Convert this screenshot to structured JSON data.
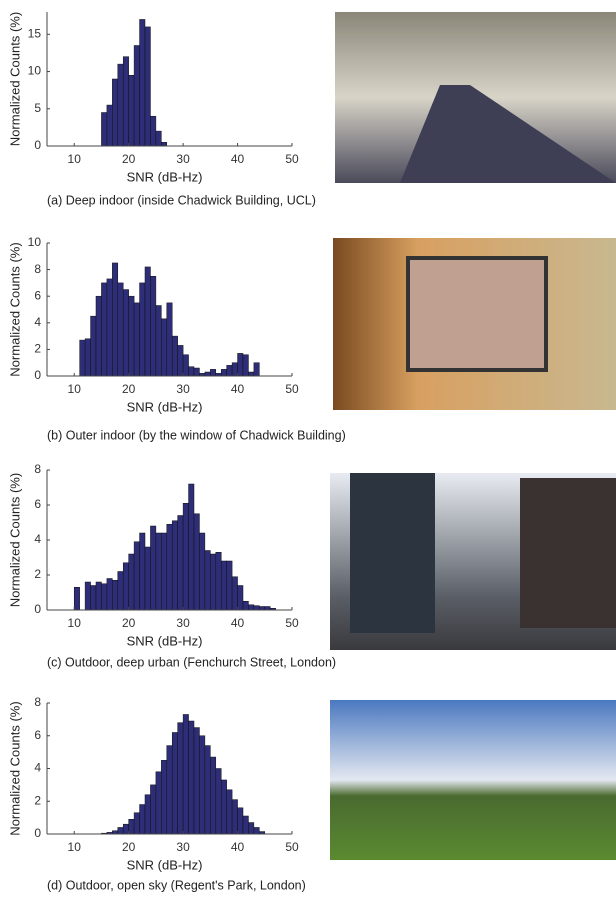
{
  "chart_data": [
    {
      "type": "histogram",
      "caption": "(a) Deep indoor (inside Chadwick Building, UCL)",
      "x_label": "SNR (dB-Hz)",
      "y_label": "Normalized Counts (%)",
      "color": "#2e2e78",
      "bins": [
        15,
        16,
        17,
        18,
        19,
        20,
        21,
        22,
        23,
        24,
        25,
        26,
        27
      ],
      "values": [
        4.5,
        5.5,
        9,
        11,
        12,
        9.5,
        13.5,
        17,
        16,
        4,
        2,
        0.5
      ],
      "xlim": [
        5,
        50
      ],
      "xticks": [
        10,
        20,
        30,
        40,
        50
      ],
      "ylim": [
        0,
        18
      ],
      "yticks": [
        0,
        5,
        10,
        15
      ]
    },
    {
      "type": "histogram",
      "caption": "(b) Outer indoor (by the window of Chadwick Building)",
      "x_label": "SNR (dB-Hz)",
      "y_label": "Normalized Counts (%)",
      "color": "#2e2e78",
      "bins": [
        11,
        12,
        13,
        14,
        15,
        16,
        17,
        18,
        19,
        20,
        21,
        22,
        23,
        24,
        25,
        26,
        27,
        28,
        29,
        30,
        31,
        32,
        33,
        34,
        35,
        36,
        37,
        38,
        39,
        40,
        41,
        42,
        43,
        44
      ],
      "values": [
        2.7,
        2.8,
        4.5,
        6,
        7,
        7.3,
        8.5,
        7,
        6.5,
        6,
        5.5,
        7,
        8.2,
        7.5,
        5.3,
        4.3,
        5.5,
        3,
        2.3,
        1.6,
        0.7,
        0.6,
        0.2,
        0.3,
        0.5,
        0.2,
        0.5,
        0.8,
        1,
        1.7,
        1.6,
        0.3,
        1
      ],
      "xlim": [
        5,
        50
      ],
      "xticks": [
        10,
        20,
        30,
        40,
        50
      ],
      "ylim": [
        0,
        10
      ],
      "yticks": [
        0,
        2,
        4,
        6,
        8,
        10
      ]
    },
    {
      "type": "histogram",
      "caption": "(c) Outdoor, deep urban (Fenchurch Street, London)",
      "x_label": "SNR (dB-Hz)",
      "y_label": "Normalized Counts (%)",
      "color": "#2e2e78",
      "bins": [
        10,
        11,
        12,
        13,
        14,
        15,
        16,
        17,
        18,
        19,
        20,
        21,
        22,
        23,
        24,
        25,
        26,
        27,
        28,
        29,
        30,
        31,
        32,
        33,
        34,
        35,
        36,
        37,
        38,
        39,
        40,
        41,
        42,
        43,
        44,
        45,
        46,
        47
      ],
      "values": [
        1.3,
        0,
        1.6,
        1.4,
        1.6,
        1.5,
        1.8,
        1.7,
        2.2,
        2.7,
        3.2,
        3.9,
        4.4,
        3.6,
        4.8,
        4.4,
        4.4,
        4.9,
        5.1,
        5.4,
        6.1,
        7.2,
        5.5,
        4.4,
        3.4,
        3.2,
        3.3,
        2.8,
        2.8,
        1.9,
        1.4,
        0.5,
        0.3,
        0.25,
        0.2,
        0.2,
        0.1
      ],
      "xlim": [
        5,
        50
      ],
      "xticks": [
        10,
        20,
        30,
        40,
        50
      ],
      "ylim": [
        0,
        8
      ],
      "yticks": [
        0,
        2,
        4,
        6,
        8
      ]
    },
    {
      "type": "histogram",
      "caption": "(d) Outdoor, open sky (Regent's Park, London)",
      "x_label": "SNR (dB-Hz)",
      "y_label": "Normalized Counts (%)",
      "color": "#2e2e78",
      "bins": [
        15,
        16,
        17,
        18,
        19,
        20,
        21,
        22,
        23,
        24,
        25,
        26,
        27,
        28,
        29,
        30,
        31,
        32,
        33,
        34,
        35,
        36,
        37,
        38,
        39,
        40,
        41,
        42,
        43,
        44,
        45
      ],
      "values": [
        0.05,
        0.1,
        0.2,
        0.4,
        0.6,
        0.9,
        1.3,
        1.8,
        2.4,
        3,
        3.8,
        4.5,
        5.4,
        6.2,
        6.8,
        7.3,
        6.9,
        6.5,
        6,
        5.4,
        4.7,
        4,
        3.3,
        2.7,
        2.1,
        1.6,
        1.1,
        0.7,
        0.4,
        0.15
      ],
      "xlim": [
        5,
        50
      ],
      "xticks": [
        10,
        20,
        30,
        40,
        50
      ],
      "ylim": [
        0,
        8
      ],
      "yticks": [
        0,
        2,
        4,
        6,
        8
      ]
    }
  ]
}
